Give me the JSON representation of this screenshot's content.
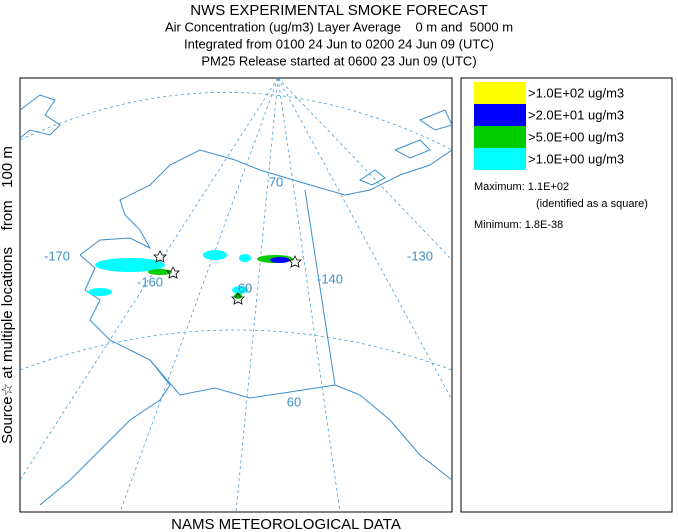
{
  "header": {
    "title": "NWS EXPERIMENTAL SMOKE FORECAST",
    "lines": [
      "Air Concentration (ug/m3) Layer Average    0 m and  5000 m",
      "Integrated from 0100 24 Jun to 0200 24 Jun 09 (UTC)",
      "PM25 Release started at 0600 23 Jun 09 (UTC)"
    ]
  },
  "side_label": "Source☆ at multiple locations    from   100 m",
  "footer": "NAMS METEOROLOGICAL DATA",
  "legend": {
    "entries": [
      {
        "label": ">1.0E+02 ug/m3",
        "color": "#ffff00"
      },
      {
        "label": ">2.0E+01 ug/m3",
        "color": "#0000ff"
      },
      {
        "label": ">5.0E+00 ug/m3",
        "color": "#00cc00"
      },
      {
        "label": ">1.0E+00 ug/m3",
        "color": "#00ffff"
      }
    ],
    "maximum": "Maximum: 1.1E+02",
    "maximum_note": "(identified as a square)",
    "minimum": "Minimum: 1.8E-38"
  },
  "map": {
    "graticule_labels": [
      "-170",
      "-160",
      "-140",
      "-130",
      "70",
      "60",
      "60"
    ]
  }
}
